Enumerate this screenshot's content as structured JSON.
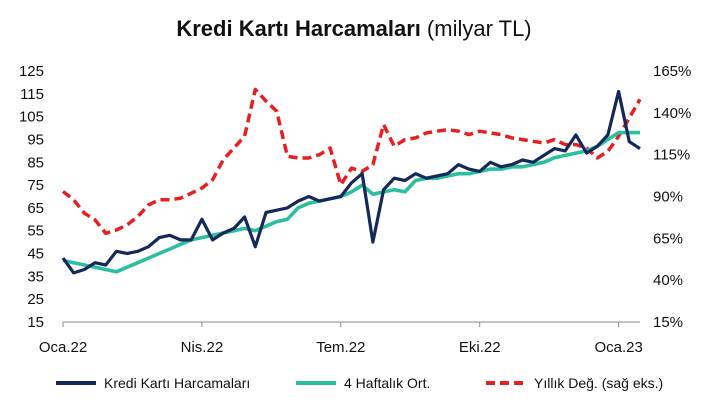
{
  "chart_data": {
    "type": "line",
    "title": "Kredi Kartı Harcamaları",
    "subtitle": "(milyar TL)",
    "x_tick_labels": [
      "Oca.22",
      "Nis.22",
      "Tem.22",
      "Eki.22",
      "Oca.23"
    ],
    "y_left_ticks": [
      "15",
      "25",
      "35",
      "45",
      "55",
      "65",
      "75",
      "85",
      "95",
      "105",
      "115",
      "125"
    ],
    "y_right_ticks": [
      "15%",
      "40%",
      "65%",
      "90%",
      "115%",
      "140%",
      "165%"
    ],
    "ylim_left": [
      15,
      125
    ],
    "ylim_right": [
      15,
      165
    ],
    "grid": false,
    "legend_position": "bottom",
    "series": [
      {
        "name": "Kredi Kartı Harcamaları",
        "axis": "left",
        "color": "#14285a",
        "style": "solid",
        "values": [
          43,
          36.5,
          38,
          41,
          40,
          46,
          45,
          46,
          48,
          52,
          53,
          51,
          51,
          60,
          51,
          54,
          56,
          61,
          48,
          63,
          64,
          65,
          68,
          70,
          68,
          69,
          70,
          76,
          80,
          50,
          73,
          78,
          77,
          80,
          78,
          79,
          80,
          84,
          82,
          81,
          85,
          83,
          84,
          86,
          85,
          88,
          91,
          90,
          97,
          89,
          92,
          97,
          116,
          94,
          91
        ]
      },
      {
        "name": "4 Haftalık Ort.",
        "axis": "left",
        "color": "#2bbfa0",
        "style": "solid",
        "values": [
          42,
          41,
          40,
          39,
          38,
          37,
          39,
          41,
          43,
          45,
          47,
          49,
          51,
          52,
          53,
          54,
          55,
          56,
          55,
          57,
          59,
          60,
          65,
          67,
          68,
          69,
          70,
          72,
          75,
          71,
          72,
          73,
          72,
          77,
          78,
          78,
          79,
          80,
          80,
          81,
          82,
          82,
          83,
          83,
          84,
          85,
          87,
          88,
          89,
          90,
          92,
          95,
          98,
          98,
          98
        ]
      },
      {
        "name": "Yıllık Değ. (sağ eks.)",
        "axis": "right",
        "color": "#e62020",
        "style": "dashed",
        "values": [
          93,
          88,
          80,
          76,
          68,
          70,
          73,
          78,
          85,
          88,
          88,
          89,
          92,
          95,
          100,
          112,
          119,
          126,
          154,
          147,
          141,
          114,
          113,
          113,
          115,
          119,
          97,
          107,
          105,
          109,
          133,
          120,
          124,
          125,
          128,
          129,
          130,
          129,
          127,
          129,
          128,
          127,
          125,
          124,
          123,
          122,
          124,
          121,
          121,
          119,
          113,
          117,
          126,
          137,
          148
        ]
      }
    ]
  }
}
